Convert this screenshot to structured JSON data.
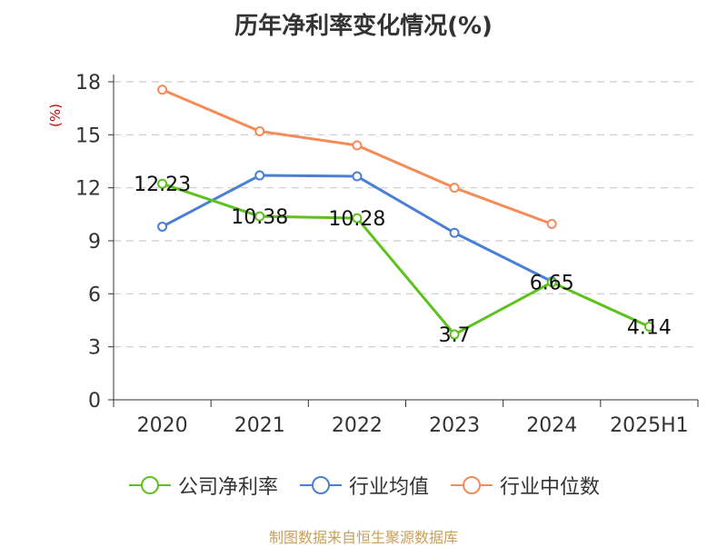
{
  "chart_data": {
    "type": "line",
    "title": "历年净利率变化情况(%)",
    "ylabel": "(%)",
    "categories": [
      "2020",
      "2021",
      "2022",
      "2023",
      "2024",
      "2025H1"
    ],
    "ylim": [
      0,
      18
    ],
    "yticks": [
      0,
      3,
      6,
      9,
      12,
      15,
      18
    ],
    "grid": true,
    "legend_position": "bottom",
    "series": [
      {
        "name": "公司净利率",
        "color": "#5dc21e",
        "values": [
          12.23,
          10.38,
          10.28,
          3.7,
          6.65,
          4.14
        ],
        "labels": [
          "12.23",
          "10.38",
          "10.28",
          "3.7",
          "6.65",
          "4.14"
        ]
      },
      {
        "name": "行业均值",
        "color": "#4a7fd6",
        "values": [
          9.8,
          12.7,
          12.65,
          9.45,
          6.7,
          null
        ]
      },
      {
        "name": "行业中位数",
        "color": "#f58b57",
        "values": [
          17.55,
          15.2,
          14.4,
          12.0,
          9.95,
          null
        ]
      }
    ]
  },
  "source": "制图数据来自恒生聚源数据库"
}
